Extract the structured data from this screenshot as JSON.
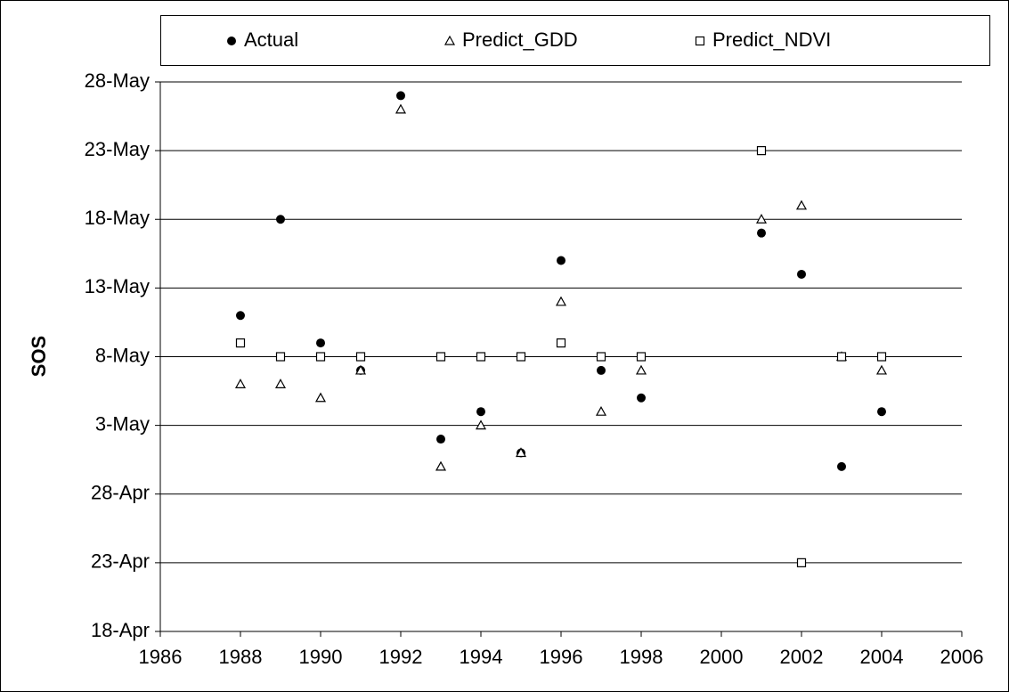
{
  "chart_data": {
    "type": "scatter",
    "y_label": "SOS",
    "xlim": [
      1986,
      2006
    ],
    "xticks": [
      1986,
      1988,
      1990,
      1992,
      1994,
      1996,
      1998,
      2000,
      2002,
      2004,
      2006
    ],
    "ylim": [
      108,
      148
    ],
    "yticks": [
      {
        "value": 108,
        "label": "18-Apr"
      },
      {
        "value": 113,
        "label": "23-Apr"
      },
      {
        "value": 118,
        "label": "28-Apr"
      },
      {
        "value": 123,
        "label": "3-May"
      },
      {
        "value": 128,
        "label": "8-May"
      },
      {
        "value": 133,
        "label": "13-May"
      },
      {
        "value": 138,
        "label": "18-May"
      },
      {
        "value": 143,
        "label": "23-May"
      },
      {
        "value": 148,
        "label": "28-May"
      }
    ],
    "grid": true,
    "legend": "top",
    "series": [
      {
        "name": "Actual",
        "color": "#000000",
        "marker": "circle",
        "x": [
          1988,
          1989,
          1990,
          1991,
          1992,
          1993,
          1994,
          1995,
          1996,
          1997,
          1998,
          2001,
          2002,
          2003,
          2004
        ],
        "values": [
          131,
          138,
          129,
          127,
          147,
          122,
          124,
          121,
          135,
          127,
          125,
          137,
          134,
          120,
          124
        ]
      },
      {
        "name": "Predict_GDD",
        "color": "#000000",
        "marker": "triangle",
        "x": [
          1988,
          1989,
          1990,
          1991,
          1992,
          1993,
          1994,
          1995,
          1996,
          1997,
          1998,
          2001,
          2002,
          2003,
          2004
        ],
        "values": [
          126,
          126,
          125,
          127,
          146,
          120,
          123,
          121,
          132,
          124,
          127,
          138,
          139,
          128,
          127
        ]
      },
      {
        "name": "Predict_NDVI",
        "color": "#000000",
        "marker": "square",
        "x": [
          1988,
          1989,
          1990,
          1991,
          1993,
          1994,
          1995,
          1996,
          1997,
          1998,
          2001,
          2002,
          2003,
          2004
        ],
        "values": [
          129,
          128,
          128,
          128,
          128,
          128,
          128,
          129,
          128,
          128,
          143,
          113,
          128,
          128
        ]
      }
    ]
  }
}
